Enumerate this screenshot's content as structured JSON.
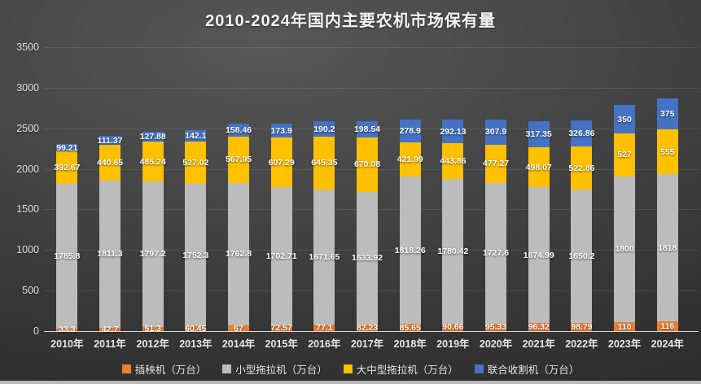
{
  "chart_data": {
    "type": "bar",
    "stacked": true,
    "title": "2010-2024年国内主要农机市场保有量",
    "categories": [
      "2010年",
      "2011年",
      "2012年",
      "2013年",
      "2014年",
      "2015年",
      "2016年",
      "2017年",
      "2018年",
      "2019年",
      "2020年",
      "2021年",
      "2022年",
      "2023年",
      "2024年"
    ],
    "series": [
      {
        "key": "rice-transplanter",
        "name": "插秧机（万台）",
        "color": "#ED7D31",
        "values": [
          33.3,
          42.7,
          51.3,
          60.45,
          67,
          72.57,
          77.1,
          82.23,
          85.65,
          90.66,
          95.33,
          96.32,
          98.79,
          110,
          116
        ]
      },
      {
        "key": "small-tractor",
        "name": "小型拖拉机（万台）",
        "color": "#BCBCBC",
        "values": [
          1785.8,
          1811.3,
          1797.2,
          1752.3,
          1762.8,
          1702.71,
          1671.65,
          1633.92,
          1818.26,
          1780.42,
          1727.6,
          1674.99,
          1650.2,
          1800,
          1818
        ]
      },
      {
        "key": "medium-large-tractor",
        "name": "大中型拖拉机（万台）",
        "color": "#FFC000",
        "values": [
          392.67,
          440.65,
          485.24,
          527.02,
          567.95,
          607.29,
          645.35,
          670.08,
          421.99,
          443.86,
          477.27,
          498.07,
          522.86,
          527,
          555
        ]
      },
      {
        "key": "combine-harvester",
        "name": "联合收割机（万台）",
        "color": "#4472C4",
        "values": [
          99.21,
          111.37,
          127.88,
          142.1,
          158.46,
          173.9,
          190.2,
          198.54,
          278.9,
          292.13,
          307.9,
          317.35,
          326.86,
          350,
          375
        ]
      }
    ],
    "y_ticks": [
      0,
      500,
      1000,
      1500,
      2000,
      2500,
      3000,
      3500
    ],
    "ylim": [
      0,
      3500
    ],
    "grid": true,
    "legend_position": "bottom",
    "data_labels": true,
    "label_color": "#ffffff",
    "axis_text_color": "#e3e3e3"
  }
}
